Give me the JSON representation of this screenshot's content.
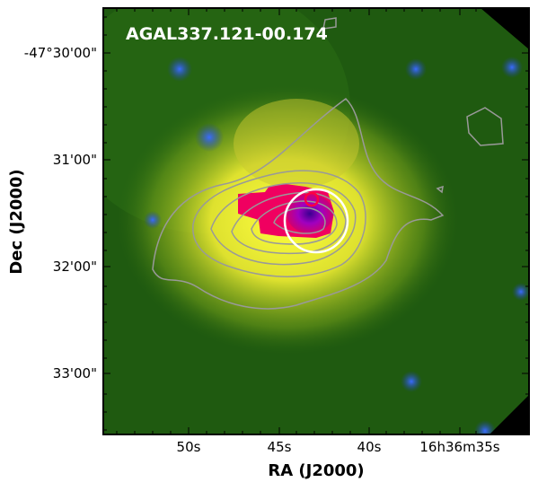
{
  "image": {
    "title": "AGAL337.121-00.174"
  },
  "axes": {
    "x": {
      "label": "RA (J2000)",
      "ticks": [
        "50s",
        "45s",
        "40s",
        "16h36m35s"
      ]
    },
    "y": {
      "label": "Dec (J2000)",
      "ticks": [
        "-47°30'00\"",
        "31'00\"",
        "32'00\"",
        "33'00\""
      ]
    }
  }
}
